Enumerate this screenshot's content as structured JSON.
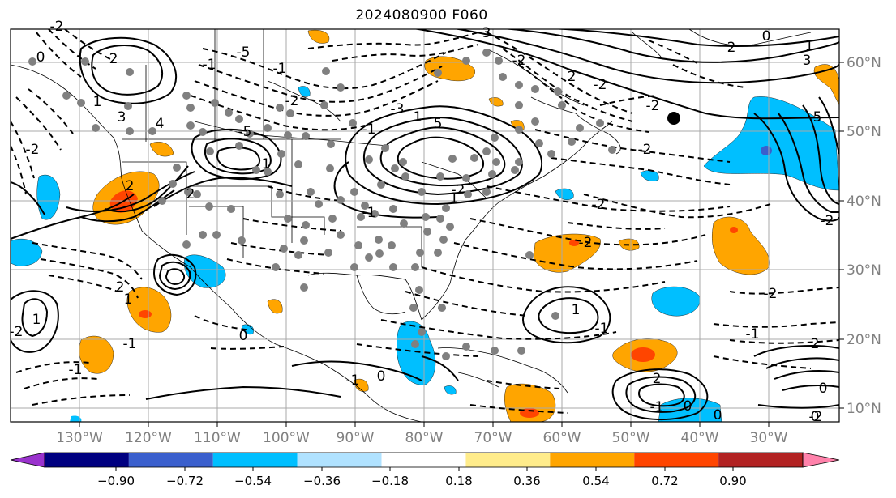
{
  "title": "2024080900 F060",
  "lon_labels": [
    "130°W",
    "120°W",
    "110°W",
    "100°W",
    "90°W",
    "80°W",
    "70°W",
    "60°W",
    "50°W",
    "40°W",
    "30°W"
  ],
  "lat_labels": [
    "60°N",
    "50°N",
    "40°N",
    "30°N",
    "20°N",
    "10°N"
  ],
  "contour_labels": [
    "2",
    "3",
    "4",
    "-2",
    "1",
    "0",
    "2",
    "1",
    "-1",
    "-2",
    "1",
    "2",
    "-1",
    "2",
    "-5",
    "-5",
    "-2",
    "-3",
    "5",
    "-2",
    "3",
    "-2",
    "2",
    "-2",
    "-2",
    "-2",
    "-2",
    "-2",
    "-2",
    "-1",
    "1",
    "2",
    "-1",
    "0",
    "-1",
    "2",
    "1",
    "0",
    "0",
    "0",
    "-2",
    "-1",
    "-1",
    "1",
    "-1",
    "-1",
    "-2",
    "3",
    "-1",
    "1",
    "0",
    "2",
    "0",
    "1",
    "5",
    "0",
    "-2"
  ],
  "colorbar": {
    "ticks": [
      "−0.90",
      "−0.72",
      "−0.54",
      "−0.36",
      "−0.18",
      "0.18",
      "0.36",
      "0.54",
      "0.72",
      "0.90"
    ],
    "colors": [
      "#9a32cd",
      "#000080",
      "#3a5fcd",
      "#00bfff",
      "#b0e2ff",
      "#ffffff",
      "#ffec8b",
      "#ffa500",
      "#ff4500",
      "#b22222",
      "#ff82ab"
    ]
  },
  "markers": {
    "gray_dot_color": "#808080",
    "black_dot_color": "#000000"
  }
}
